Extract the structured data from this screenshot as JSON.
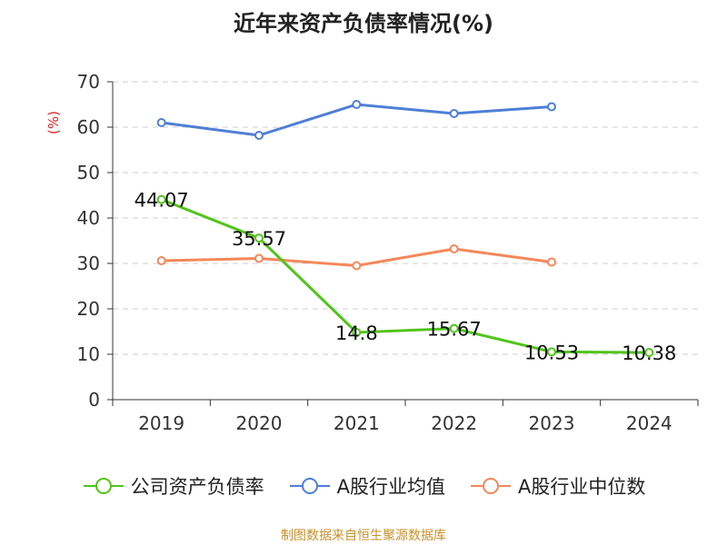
{
  "title": "近年来资产负债率情况(%)",
  "unit_label": "(%)",
  "source": "制图数据来自恒生聚源数据库",
  "chart_data": {
    "type": "line",
    "categories": [
      "2019",
      "2020",
      "2021",
      "2022",
      "2023",
      "2024"
    ],
    "ylim": [
      0,
      70
    ],
    "yticks": [
      0,
      10,
      20,
      30,
      40,
      50,
      60,
      70
    ],
    "grid": true,
    "legend_position": "bottom",
    "series": [
      {
        "name": "公司资产负债率",
        "color": "#52c41a",
        "values": [
          44.07,
          35.57,
          14.8,
          15.67,
          10.53,
          10.38
        ],
        "labels": [
          "44.07",
          "35.57",
          "14.8",
          "15.67",
          "10.53",
          "10.38"
        ]
      },
      {
        "name": "A股行业均值",
        "color": "#4e7fd6",
        "values": [
          61,
          58.2,
          65,
          63,
          64.5,
          null
        ]
      },
      {
        "name": "A股行业中位数",
        "color": "#f4875a",
        "values": [
          30.6,
          31.1,
          29.5,
          33.2,
          30.3,
          null
        ]
      }
    ]
  }
}
